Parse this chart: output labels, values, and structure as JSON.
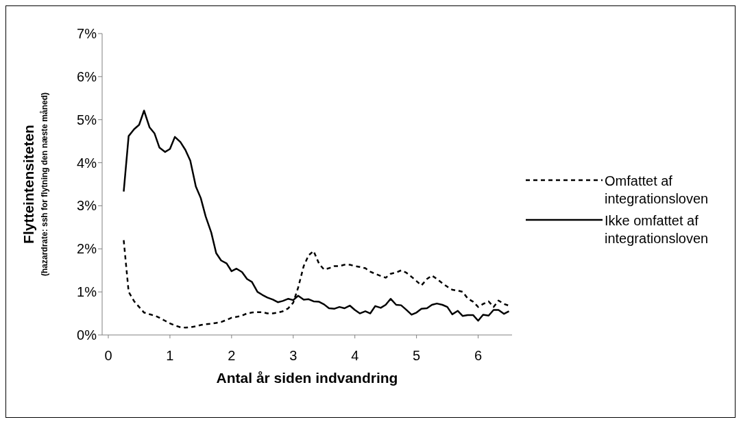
{
  "chart_data": {
    "type": "line",
    "xlabel": "Antal år siden indvandring",
    "ylabel": "Flytteintensiteten\n(hazardrate: ssh for flytning den næste måned)",
    "x": [
      0.25,
      0.33,
      0.42,
      0.5,
      0.58,
      0.67,
      0.75,
      0.83,
      0.92,
      1.0,
      1.08,
      1.17,
      1.25,
      1.33,
      1.42,
      1.5,
      1.58,
      1.67,
      1.75,
      1.83,
      1.92,
      2.0,
      2.08,
      2.17,
      2.25,
      2.33,
      2.42,
      2.5,
      2.58,
      2.67,
      2.75,
      2.83,
      2.92,
      3.0,
      3.08,
      3.17,
      3.25,
      3.33,
      3.42,
      3.5,
      3.58,
      3.67,
      3.75,
      3.83,
      3.92,
      4.0,
      4.08,
      4.17,
      4.25,
      4.33,
      4.42,
      4.5,
      4.58,
      4.67,
      4.75,
      4.83,
      4.92,
      5.0,
      5.08,
      5.17,
      5.25,
      5.33,
      5.42,
      5.5,
      5.58,
      5.67,
      5.75,
      5.83,
      5.92,
      6.0,
      6.08,
      6.17,
      6.25,
      6.33,
      6.42,
      6.5
    ],
    "series": [
      {
        "name": "Omfattet af integrationsloven",
        "color": "#000000",
        "line_style": "dashed",
        "values": [
          2.2,
          1.0,
          0.78,
          0.65,
          0.52,
          0.48,
          0.45,
          0.4,
          0.33,
          0.27,
          0.22,
          0.18,
          0.17,
          0.18,
          0.2,
          0.23,
          0.25,
          0.26,
          0.28,
          0.3,
          0.35,
          0.4,
          0.42,
          0.45,
          0.5,
          0.52,
          0.53,
          0.53,
          0.5,
          0.5,
          0.52,
          0.55,
          0.62,
          0.75,
          1.1,
          1.6,
          1.85,
          1.95,
          1.65,
          1.52,
          1.55,
          1.6,
          1.6,
          1.63,
          1.63,
          1.6,
          1.58,
          1.55,
          1.47,
          1.42,
          1.37,
          1.33,
          1.42,
          1.45,
          1.5,
          1.45,
          1.35,
          1.25,
          1.15,
          1.3,
          1.38,
          1.3,
          1.2,
          1.12,
          1.05,
          1.03,
          1.0,
          0.85,
          0.77,
          0.65,
          0.72,
          0.78,
          0.65,
          0.8,
          0.72,
          0.68
        ]
      },
      {
        "name": "Ikke omfattet af integrationsloven",
        "color": "#000000",
        "line_style": "solid",
        "values": [
          3.33,
          4.62,
          4.78,
          4.88,
          5.21,
          4.82,
          4.68,
          4.35,
          4.25,
          4.32,
          4.6,
          4.48,
          4.3,
          4.05,
          3.45,
          3.18,
          2.75,
          2.38,
          1.9,
          1.73,
          1.66,
          1.48,
          1.54,
          1.46,
          1.3,
          1.23,
          1.0,
          0.93,
          0.87,
          0.82,
          0.76,
          0.79,
          0.84,
          0.81,
          0.91,
          0.82,
          0.83,
          0.78,
          0.77,
          0.71,
          0.62,
          0.61,
          0.65,
          0.62,
          0.68,
          0.58,
          0.5,
          0.55,
          0.5,
          0.67,
          0.63,
          0.7,
          0.84,
          0.7,
          0.69,
          0.59,
          0.47,
          0.52,
          0.61,
          0.62,
          0.7,
          0.73,
          0.7,
          0.65,
          0.48,
          0.56,
          0.44,
          0.46,
          0.46,
          0.33,
          0.47,
          0.45,
          0.58,
          0.58,
          0.49,
          0.55
        ]
      }
    ],
    "xlim": [
      -0.1,
      6.55
    ],
    "xticks": [
      0,
      1,
      2,
      3,
      4,
      5,
      6
    ],
    "ylim": [
      0,
      7
    ],
    "yticks": [
      {
        "value": 0,
        "label": "0%"
      },
      {
        "value": 1,
        "label": "1%"
      },
      {
        "value": 2,
        "label": "2%"
      },
      {
        "value": 3,
        "label": "3%"
      },
      {
        "value": 4,
        "label": "4%"
      },
      {
        "value": 5,
        "label": "5%"
      },
      {
        "value": 6,
        "label": "6%"
      },
      {
        "value": 7,
        "label": "7%"
      }
    ],
    "grid": false,
    "legend": "right",
    "marker": "none"
  }
}
